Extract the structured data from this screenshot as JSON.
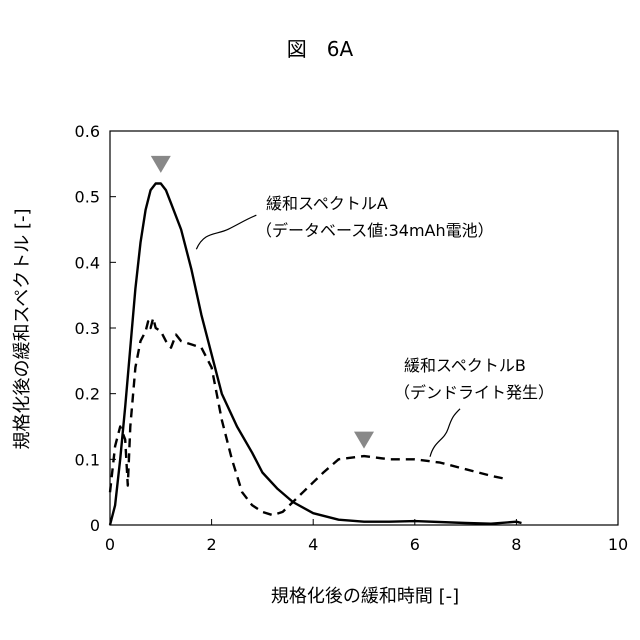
{
  "chart_data": {
    "type": "line",
    "title": "図　6A",
    "xlabel": "規格化後の緩和時間 [-]",
    "ylabel": "規格化後の緩和スペクトル [-]",
    "xlim": [
      0,
      10
    ],
    "ylim": [
      0,
      0.6
    ],
    "x_ticks": [
      0,
      2,
      4,
      6,
      8,
      10
    ],
    "y_ticks": [
      0,
      0.1,
      0.2,
      0.3,
      0.4,
      0.5,
      0.6
    ],
    "x_tick_labels": [
      "0",
      "2",
      "4",
      "6",
      "8",
      "10"
    ],
    "y_tick_labels": [
      "0",
      "0.1",
      "0.2",
      "0.3",
      "0.4",
      "0.5",
      "0.6"
    ],
    "grid": false,
    "legend": "none",
    "series": [
      {
        "name": "緩和スペクトルA",
        "style": "solid",
        "color": "#000000",
        "x": [
          0.0,
          0.1,
          0.2,
          0.3,
          0.4,
          0.5,
          0.6,
          0.7,
          0.8,
          0.9,
          1.0,
          1.1,
          1.2,
          1.4,
          1.6,
          1.8,
          2.0,
          2.2,
          2.5,
          2.8,
          3.0,
          3.3,
          3.6,
          4.0,
          4.5,
          5.0,
          5.5,
          6.0,
          7.0,
          7.5,
          8.0,
          8.1
        ],
        "y": [
          0.0,
          0.03,
          0.1,
          0.18,
          0.27,
          0.36,
          0.43,
          0.48,
          0.51,
          0.52,
          0.52,
          0.51,
          0.49,
          0.45,
          0.39,
          0.32,
          0.26,
          0.2,
          0.15,
          0.11,
          0.08,
          0.055,
          0.035,
          0.018,
          0.008,
          0.005,
          0.005,
          0.006,
          0.003,
          0.002,
          0.005,
          0.003
        ]
      },
      {
        "name": "緩和スペクトルB",
        "style": "dashed",
        "color": "#000000",
        "x": [
          0.0,
          0.1,
          0.2,
          0.3,
          0.35,
          0.4,
          0.5,
          0.6,
          0.7,
          0.75,
          0.8,
          0.85,
          0.9,
          1.0,
          1.1,
          1.2,
          1.3,
          1.4,
          1.6,
          1.8,
          2.0,
          2.1,
          2.2,
          2.4,
          2.6,
          2.8,
          3.0,
          3.2,
          3.4,
          3.6,
          3.8,
          4.0,
          4.2,
          4.5,
          5.0,
          5.5,
          6.0,
          6.5,
          7.0,
          7.5,
          7.8
        ],
        "y": [
          0.05,
          0.12,
          0.15,
          0.13,
          0.06,
          0.15,
          0.24,
          0.28,
          0.295,
          0.31,
          0.3,
          0.315,
          0.3,
          0.295,
          0.28,
          0.27,
          0.29,
          0.28,
          0.275,
          0.27,
          0.24,
          0.2,
          0.16,
          0.1,
          0.05,
          0.03,
          0.02,
          0.015,
          0.02,
          0.035,
          0.05,
          0.065,
          0.08,
          0.1,
          0.105,
          0.1,
          0.1,
          0.095,
          0.085,
          0.075,
          0.07
        ]
      }
    ],
    "markers": [
      {
        "type": "triangle-down",
        "color": "#888888",
        "x": 1.0,
        "y": 0.55
      },
      {
        "type": "triangle-down",
        "color": "#888888",
        "x": 5.0,
        "y": 0.13
      }
    ],
    "annotations": [
      {
        "lines": [
          "緩和スペクトルA",
          "（データベース値:34mAh電池）"
        ],
        "points_to": {
          "x": 1.7,
          "y": 0.42
        }
      },
      {
        "lines": [
          "緩和スペクトルB",
          "（デンドライト発生）"
        ],
        "points_to": {
          "x": 6.3,
          "y": 0.11
        }
      }
    ]
  }
}
